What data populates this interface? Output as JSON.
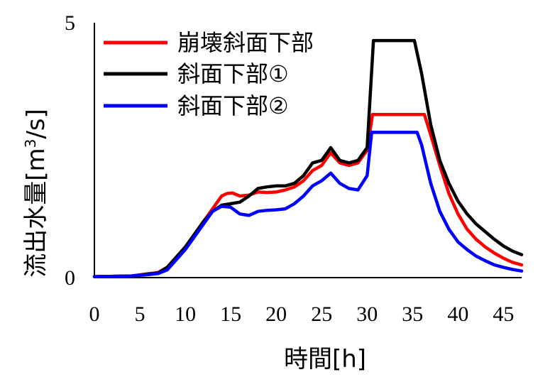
{
  "chart_data": {
    "type": "line",
    "xlabel": "時間[h]",
    "ylabel": "流出水量[m3/s]",
    "ylabel_parts": {
      "main": "流出水量[m",
      "sup": "3",
      "tail": "/s]"
    },
    "xlim": [
      0,
      47
    ],
    "ylim": [
      0,
      5
    ],
    "x_ticks": [
      "0",
      "5",
      "10",
      "15",
      "20",
      "25",
      "30",
      "35",
      "40",
      "45"
    ],
    "y_ticks": [
      "0",
      "5"
    ],
    "grid": false,
    "legend_position": "top-left",
    "series": [
      {
        "name": "崩壊斜面下部",
        "color": "#ff0000",
        "points": [
          [
            0,
            0.02
          ],
          [
            4,
            0.03
          ],
          [
            6,
            0.08
          ],
          [
            7,
            0.1
          ],
          [
            8,
            0.2
          ],
          [
            9,
            0.4
          ],
          [
            10,
            0.6
          ],
          [
            11,
            0.85
          ],
          [
            12,
            1.1
          ],
          [
            13,
            1.35
          ],
          [
            14,
            1.6
          ],
          [
            14.6,
            1.65
          ],
          [
            15.2,
            1.66
          ],
          [
            16,
            1.6
          ],
          [
            17,
            1.62
          ],
          [
            18,
            1.68
          ],
          [
            19,
            1.67
          ],
          [
            20,
            1.68
          ],
          [
            21,
            1.72
          ],
          [
            22,
            1.78
          ],
          [
            23,
            1.9
          ],
          [
            24,
            2.1
          ],
          [
            25,
            2.2
          ],
          [
            26,
            2.45
          ],
          [
            27,
            2.25
          ],
          [
            28,
            2.2
          ],
          [
            29,
            2.25
          ],
          [
            30,
            2.5
          ],
          [
            30.6,
            3.2
          ],
          [
            36.3,
            3.2
          ],
          [
            37,
            2.8
          ],
          [
            38,
            2.2
          ],
          [
            39,
            1.65
          ],
          [
            40,
            1.25
          ],
          [
            41,
            0.95
          ],
          [
            42,
            0.75
          ],
          [
            43,
            0.6
          ],
          [
            44,
            0.48
          ],
          [
            45,
            0.38
          ],
          [
            46,
            0.3
          ],
          [
            47,
            0.25
          ]
        ]
      },
      {
        "name": "斜面下部①",
        "color": "#000000",
        "points": [
          [
            0,
            0.02
          ],
          [
            4,
            0.03
          ],
          [
            6,
            0.07
          ],
          [
            7,
            0.09
          ],
          [
            8,
            0.2
          ],
          [
            9,
            0.4
          ],
          [
            10,
            0.6
          ],
          [
            11,
            0.85
          ],
          [
            12,
            1.1
          ],
          [
            13,
            1.3
          ],
          [
            14,
            1.42
          ],
          [
            15,
            1.45
          ],
          [
            16,
            1.48
          ],
          [
            17,
            1.6
          ],
          [
            18,
            1.75
          ],
          [
            19,
            1.78
          ],
          [
            20,
            1.8
          ],
          [
            21,
            1.8
          ],
          [
            22,
            1.85
          ],
          [
            23,
            2.0
          ],
          [
            24,
            2.25
          ],
          [
            25,
            2.3
          ],
          [
            26,
            2.55
          ],
          [
            27,
            2.3
          ],
          [
            28,
            2.25
          ],
          [
            29,
            2.3
          ],
          [
            30,
            2.55
          ],
          [
            30.7,
            4.65
          ],
          [
            35.2,
            4.65
          ],
          [
            36,
            4.0
          ],
          [
            37,
            3.0
          ],
          [
            38,
            2.3
          ],
          [
            39,
            1.85
          ],
          [
            40,
            1.5
          ],
          [
            41,
            1.25
          ],
          [
            42,
            1.05
          ],
          [
            43,
            0.9
          ],
          [
            44,
            0.75
          ],
          [
            45,
            0.62
          ],
          [
            46,
            0.52
          ],
          [
            47,
            0.45
          ]
        ]
      },
      {
        "name": "斜面下部②",
        "color": "#0000ff",
        "points": [
          [
            0,
            0.02
          ],
          [
            4,
            0.03
          ],
          [
            6,
            0.06
          ],
          [
            7,
            0.08
          ],
          [
            8,
            0.15
          ],
          [
            9,
            0.35
          ],
          [
            10,
            0.55
          ],
          [
            11,
            0.8
          ],
          [
            12,
            1.05
          ],
          [
            13,
            1.3
          ],
          [
            14,
            1.4
          ],
          [
            15,
            1.38
          ],
          [
            16,
            1.25
          ],
          [
            17,
            1.22
          ],
          [
            18,
            1.3
          ],
          [
            19,
            1.32
          ],
          [
            20,
            1.33
          ],
          [
            21,
            1.35
          ],
          [
            22,
            1.45
          ],
          [
            23,
            1.6
          ],
          [
            24,
            1.8
          ],
          [
            25,
            1.9
          ],
          [
            26,
            2.05
          ],
          [
            27,
            1.85
          ],
          [
            28,
            1.75
          ],
          [
            29,
            1.72
          ],
          [
            30,
            2.0
          ],
          [
            30.5,
            2.85
          ],
          [
            35.5,
            2.85
          ],
          [
            36,
            2.6
          ],
          [
            37,
            1.85
          ],
          [
            38,
            1.3
          ],
          [
            39,
            0.95
          ],
          [
            40,
            0.7
          ],
          [
            41,
            0.55
          ],
          [
            42,
            0.42
          ],
          [
            43,
            0.33
          ],
          [
            44,
            0.25
          ],
          [
            45,
            0.2
          ],
          [
            46,
            0.16
          ],
          [
            47,
            0.13
          ]
        ]
      }
    ]
  }
}
